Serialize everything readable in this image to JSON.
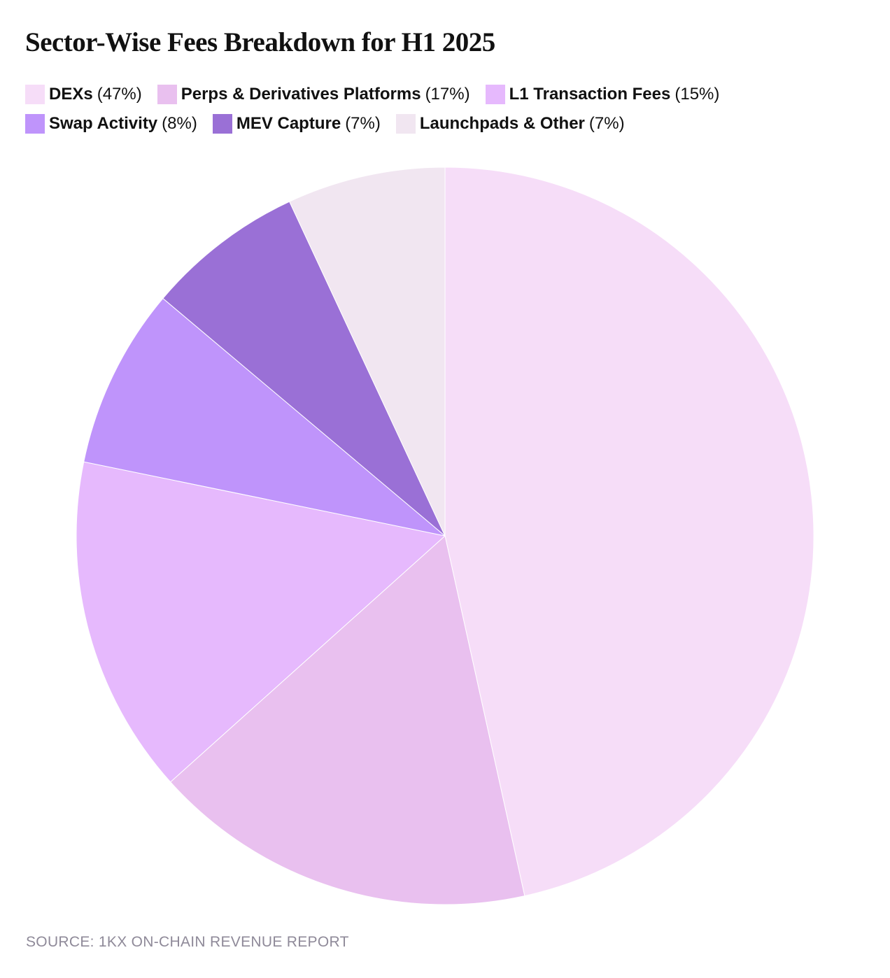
{
  "chart_data": {
    "type": "pie",
    "title": "Sector-Wise Fees Breakdown for H1 2025",
    "legend_placement": "top",
    "slices": [
      {
        "label": "DEXs",
        "value": 47,
        "pct_label": "(47%)",
        "color": "#f6ddf8"
      },
      {
        "label": "Perps & Derivatives Platforms",
        "value": 17,
        "pct_label": "(17%)",
        "color": "#e9c0ef"
      },
      {
        "label": "L1 Transaction Fees",
        "value": 15,
        "pct_label": "(15%)",
        "color": "#e6b9fd"
      },
      {
        "label": "Swap Activity",
        "value": 8,
        "pct_label": "(8%)",
        "color": "#bf94fb"
      },
      {
        "label": "MEV Capture",
        "value": 7,
        "pct_label": "(7%)",
        "color": "#9a70d6"
      },
      {
        "label": "Launchpads & Other",
        "value": 7,
        "pct_label": "(7%)",
        "color": "#f1e6f1"
      }
    ],
    "source": "SOURCE: 1KX ON-CHAIN REVENUE REPORT"
  }
}
